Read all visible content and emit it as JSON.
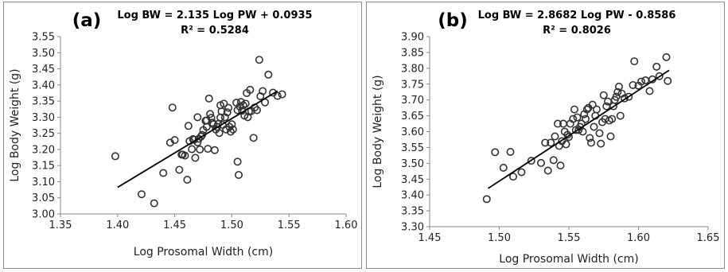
{
  "chart_data": [
    {
      "type": "scatter",
      "panel_label": "(a)",
      "equation": "Log BW = 2.135 Log PW + 0.0935",
      "r_squared": "R² = 0.5284",
      "xlabel": "Log Prosomal Width (cm)",
      "ylabel": "Log Body Weight (g)",
      "xlim": [
        1.35,
        1.6
      ],
      "ylim": [
        3.0,
        3.55
      ],
      "xticks": [
        "1.35",
        "1.40",
        "1.45",
        "1.50",
        "1.55",
        "1.60"
      ],
      "yticks": [
        "3.00",
        "3.05",
        "3.10",
        "3.15",
        "3.20",
        "3.25",
        "3.30",
        "3.35",
        "3.40",
        "3.45",
        "3.50",
        "3.55"
      ],
      "trendline": {
        "slope": 2.135,
        "intercept": 0.0935,
        "x_range": [
          1.4,
          1.54
        ]
      },
      "points": [
        [
          1.398,
          3.179
        ],
        [
          1.421,
          3.061
        ],
        [
          1.432,
          3.033
        ],
        [
          1.44,
          3.127
        ],
        [
          1.446,
          3.221
        ],
        [
          1.448,
          3.33
        ],
        [
          1.45,
          3.229
        ],
        [
          1.454,
          3.137
        ],
        [
          1.456,
          3.184
        ],
        [
          1.457,
          3.184
        ],
        [
          1.459,
          3.181
        ],
        [
          1.461,
          3.106
        ],
        [
          1.462,
          3.273
        ],
        [
          1.463,
          3.226
        ],
        [
          1.465,
          3.201
        ],
        [
          1.466,
          3.232
        ],
        [
          1.467,
          3.23
        ],
        [
          1.468,
          3.174
        ],
        [
          1.47,
          3.222
        ],
        [
          1.47,
          3.3
        ],
        [
          1.471,
          3.233
        ],
        [
          1.472,
          3.2
        ],
        [
          1.473,
          3.24
        ],
        [
          1.474,
          3.245
        ],
        [
          1.475,
          3.26
        ],
        [
          1.477,
          3.289
        ],
        [
          1.478,
          3.29
        ],
        [
          1.478,
          3.27
        ],
        [
          1.479,
          3.202
        ],
        [
          1.48,
          3.358
        ],
        [
          1.481,
          3.31
        ],
        [
          1.482,
          3.298
        ],
        [
          1.483,
          3.283
        ],
        [
          1.484,
          3.278
        ],
        [
          1.485,
          3.198
        ],
        [
          1.486,
          3.262
        ],
        [
          1.487,
          3.27
        ],
        [
          1.488,
          3.279
        ],
        [
          1.489,
          3.251
        ],
        [
          1.49,
          3.299
        ],
        [
          1.49,
          3.337
        ],
        [
          1.491,
          3.318
        ],
        [
          1.492,
          3.276
        ],
        [
          1.493,
          3.342
        ],
        [
          1.494,
          3.3
        ],
        [
          1.495,
          3.262
        ],
        [
          1.496,
          3.315
        ],
        [
          1.497,
          3.329
        ],
        [
          1.498,
          3.27
        ],
        [
          1.499,
          3.255
        ],
        [
          1.5,
          3.278
        ],
        [
          1.501,
          3.262
        ],
        [
          1.504,
          3.345
        ],
        [
          1.505,
          3.322
        ],
        [
          1.505,
          3.162
        ],
        [
          1.506,
          3.121
        ],
        [
          1.507,
          3.333
        ],
        [
          1.508,
          3.347
        ],
        [
          1.509,
          3.32
        ],
        [
          1.51,
          3.337
        ],
        [
          1.511,
          3.305
        ],
        [
          1.512,
          3.342
        ],
        [
          1.513,
          3.375
        ],
        [
          1.514,
          3.3
        ],
        [
          1.515,
          3.318
        ],
        [
          1.516,
          3.385
        ],
        [
          1.517,
          3.319
        ],
        [
          1.519,
          3.236
        ],
        [
          1.52,
          3.33
        ],
        [
          1.522,
          3.322
        ],
        [
          1.524,
          3.478
        ],
        [
          1.525,
          3.365
        ],
        [
          1.527,
          3.381
        ],
        [
          1.529,
          3.346
        ],
        [
          1.532,
          3.432
        ],
        [
          1.536,
          3.376
        ],
        [
          1.54,
          3.366
        ],
        [
          1.544,
          3.371
        ]
      ]
    },
    {
      "type": "scatter",
      "panel_label": "(b)",
      "equation": "Log BW = 2.8682 Log PW - 0.8586",
      "r_squared": "R² = 0.8026",
      "xlabel": "Log Prosomal Width (cm)",
      "ylabel": "Log Body Weight (g)",
      "xlim": [
        1.45,
        1.65
      ],
      "ylim": [
        3.3,
        3.9
      ],
      "xticks": [
        "1.45",
        "1.50",
        "1.55",
        "1.60",
        "1.65"
      ],
      "yticks": [
        "3.30",
        "3.35",
        "3.40",
        "3.45",
        "3.50",
        "3.55",
        "3.60",
        "3.65",
        "3.70",
        "3.75",
        "3.80",
        "3.85",
        "3.90"
      ],
      "trendline": {
        "slope": 2.8682,
        "intercept": -0.8586,
        "x_range": [
          1.492,
          1.622
        ]
      },
      "points": [
        [
          1.491,
          3.387
        ],
        [
          1.497,
          3.535
        ],
        [
          1.503,
          3.486
        ],
        [
          1.508,
          3.536
        ],
        [
          1.51,
          3.458
        ],
        [
          1.516,
          3.472
        ],
        [
          1.523,
          3.508
        ],
        [
          1.53,
          3.501
        ],
        [
          1.533,
          3.565
        ],
        [
          1.535,
          3.477
        ],
        [
          1.537,
          3.565
        ],
        [
          1.539,
          3.51
        ],
        [
          1.54,
          3.585
        ],
        [
          1.542,
          3.625
        ],
        [
          1.543,
          3.555
        ],
        [
          1.544,
          3.493
        ],
        [
          1.545,
          3.57
        ],
        [
          1.546,
          3.625
        ],
        [
          1.547,
          3.6
        ],
        [
          1.548,
          3.56
        ],
        [
          1.549,
          3.59
        ],
        [
          1.55,
          3.583
        ],
        [
          1.551,
          3.625
        ],
        [
          1.553,
          3.64
        ],
        [
          1.554,
          3.67
        ],
        [
          1.555,
          3.605
        ],
        [
          1.556,
          3.645
        ],
        [
          1.557,
          3.605
        ],
        [
          1.558,
          3.615
        ],
        [
          1.559,
          3.625
        ],
        [
          1.56,
          3.6
        ],
        [
          1.561,
          3.655
        ],
        [
          1.562,
          3.64
        ],
        [
          1.563,
          3.67
        ],
        [
          1.564,
          3.675
        ],
        [
          1.565,
          3.58
        ],
        [
          1.566,
          3.565
        ],
        [
          1.567,
          3.685
        ],
        [
          1.568,
          3.615
        ],
        [
          1.569,
          3.65
        ],
        [
          1.57,
          3.67
        ],
        [
          1.572,
          3.595
        ],
        [
          1.573,
          3.562
        ],
        [
          1.574,
          3.63
        ],
        [
          1.575,
          3.715
        ],
        [
          1.576,
          3.64
        ],
        [
          1.577,
          3.68
        ],
        [
          1.578,
          3.695
        ],
        [
          1.579,
          3.635
        ],
        [
          1.58,
          3.585
        ],
        [
          1.581,
          3.64
        ],
        [
          1.582,
          3.68
        ],
        [
          1.583,
          3.7
        ],
        [
          1.584,
          3.71
        ],
        [
          1.585,
          3.725
        ],
        [
          1.586,
          3.742
        ],
        [
          1.587,
          3.65
        ],
        [
          1.588,
          3.72
        ],
        [
          1.59,
          3.705
        ],
        [
          1.593,
          3.71
        ],
        [
          1.596,
          3.747
        ],
        [
          1.597,
          3.822
        ],
        [
          1.6,
          3.745
        ],
        [
          1.602,
          3.758
        ],
        [
          1.605,
          3.762
        ],
        [
          1.608,
          3.728
        ],
        [
          1.61,
          3.765
        ],
        [
          1.613,
          3.805
        ],
        [
          1.615,
          3.775
        ],
        [
          1.62,
          3.835
        ],
        [
          1.621,
          3.76
        ]
      ]
    }
  ]
}
